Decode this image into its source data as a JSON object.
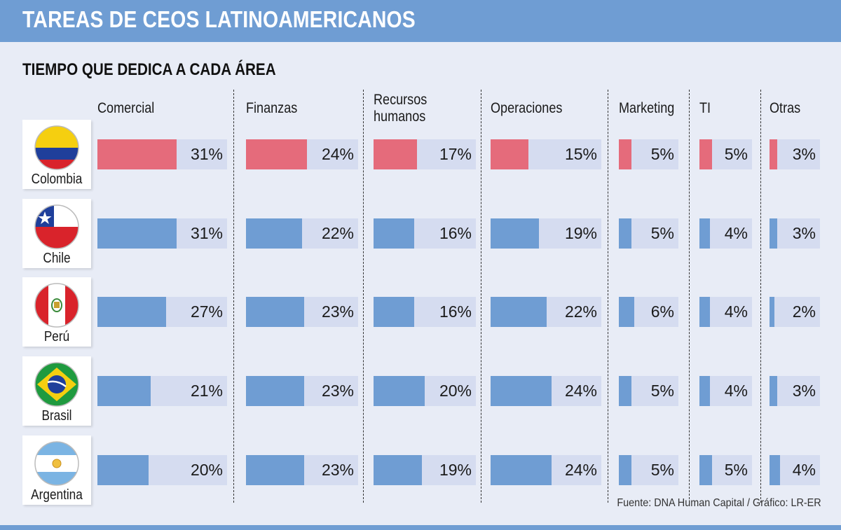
{
  "header": {
    "title": "TAREAS DE CEOS LATINOAMERICANOS"
  },
  "chart_data": {
    "type": "bar",
    "title": "TIEMPO QUE DEDICA A CADA ÁREA",
    "categories": [
      "Comercial",
      "Finanzas",
      "Recursos humanos",
      "Operaciones",
      "Marketing",
      "TI",
      "Otras"
    ],
    "category_lines": [
      [
        "Comercial"
      ],
      [
        "Finanzas"
      ],
      [
        "Recursos",
        "humanos"
      ],
      [
        "Operaciones"
      ],
      [
        "Marketing"
      ],
      [
        "TI"
      ],
      [
        "Otras"
      ]
    ],
    "unit": "%",
    "series": [
      {
        "name": "Colombia",
        "values": [
          31,
          24,
          17,
          15,
          5,
          5,
          3
        ]
      },
      {
        "name": "Chile",
        "values": [
          31,
          22,
          16,
          19,
          5,
          4,
          3
        ]
      },
      {
        "name": "Perú",
        "values": [
          27,
          23,
          16,
          22,
          6,
          4,
          2
        ]
      },
      {
        "name": "Brasil",
        "values": [
          21,
          23,
          20,
          24,
          5,
          4,
          3
        ]
      },
      {
        "name": "Argentina",
        "values": [
          20,
          23,
          19,
          24,
          5,
          5,
          4
        ]
      }
    ],
    "highlight_series": "Colombia",
    "colors": {
      "highlight": "#e56b7b",
      "default": "#6f9dd3",
      "track": "#d5dcf0"
    },
    "flags": [
      "colombia-flag-icon",
      "chile-flag-icon",
      "peru-flag-icon",
      "brasil-flag-icon",
      "argentina-flag-icon"
    ]
  },
  "footer": {
    "source": "Fuente: DNA Human Capital / Gráfico: LR-ER"
  }
}
